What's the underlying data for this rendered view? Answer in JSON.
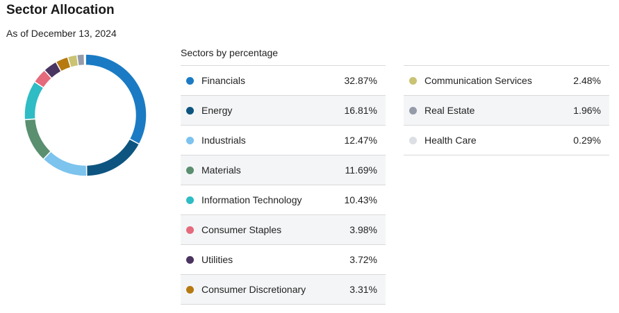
{
  "header": {
    "title": "Sector Allocation",
    "as_of": "As of December 13, 2024",
    "table_caption": "Sectors by percentage"
  },
  "chart_data": {
    "type": "pie",
    "variant": "donut",
    "title": "Sector Allocation",
    "categories": [
      "Financials",
      "Energy",
      "Industrials",
      "Materials",
      "Information Technology",
      "Consumer Staples",
      "Utilities",
      "Consumer Discretionary",
      "Communication Services",
      "Real Estate",
      "Health Care"
    ],
    "values": [
      32.87,
      16.81,
      12.47,
      11.69,
      10.43,
      3.98,
      3.72,
      3.31,
      2.48,
      1.96,
      0.29
    ],
    "value_labels": [
      "32.87%",
      "16.81%",
      "12.47%",
      "11.69%",
      "10.43%",
      "3.98%",
      "3.72%",
      "3.31%",
      "2.48%",
      "1.96%",
      "0.29%"
    ],
    "colors": [
      "#1a7bc4",
      "#0d5580",
      "#7cc3ee",
      "#5a8f6f",
      "#2fbcc4",
      "#e46a7c",
      "#4a3460",
      "#b67a10",
      "#c9c373",
      "#959ba8",
      "#dcdfe3"
    ],
    "legend_placement": "right"
  }
}
